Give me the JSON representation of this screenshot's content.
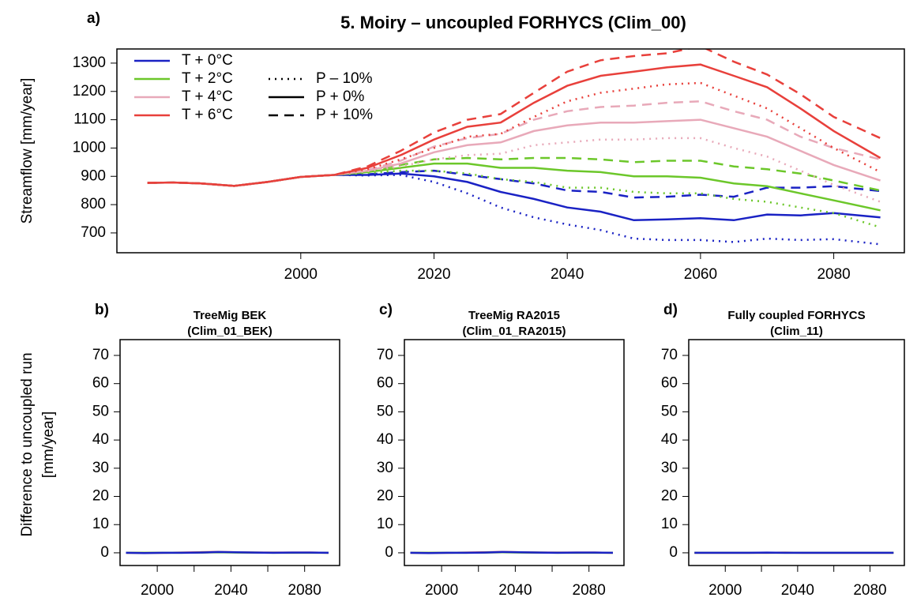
{
  "chart_data": [
    {
      "type": "line",
      "panel_label": "a)",
      "title": "5. Moiry – uncoupled FORHYCS (Clim_00)",
      "ylabel": "Streamflow [mm/year]",
      "x": [
        1977,
        1981,
        1985,
        1990,
        1995,
        2000,
        2005,
        2010,
        2015,
        2020,
        2025,
        2030,
        2035,
        2040,
        2045,
        2050,
        2055,
        2060,
        2065,
        2070,
        2075,
        2080,
        2087
      ],
      "xlim": [
        1972.4,
        2090.6
      ],
      "xticks": [
        2000,
        2020,
        2040,
        2060,
        2080
      ],
      "ylim": [
        630,
        1350
      ],
      "yticks": [
        700,
        800,
        900,
        1000,
        1100,
        1200,
        1300
      ],
      "line_styles": [
        {
          "name": "P – 10%",
          "dash": "dotted"
        },
        {
          "name": "P + 0%",
          "dash": "solid"
        },
        {
          "name": "P + 10%",
          "dash": "dashed"
        }
      ],
      "series": [
        {
          "name": "T + 0°C",
          "color": "#1a22c4",
          "values": [
            [
              877,
              878,
              875,
              866,
              880,
              898,
              905,
              903,
              905,
              880,
              840,
              790,
              755,
              730,
              710,
              680,
              675,
              675,
              668,
              680,
              675,
              678,
              660
            ],
            [
              877,
              878,
              875,
              866,
              880,
              898,
              905,
              905,
              910,
              900,
              880,
              845,
              820,
              790,
              775,
              745,
              748,
              752,
              745,
              765,
              762,
              770,
              755
            ],
            [
              877,
              878,
              875,
              866,
              880,
              898,
              905,
              907,
              915,
              920,
              905,
              890,
              875,
              850,
              845,
              825,
              828,
              835,
              828,
              860,
              860,
              865,
              848
            ]
          ]
        },
        {
          "name": "T + 2°C",
          "color": "#6cc72a",
          "values": [
            [
              877,
              878,
              875,
              866,
              880,
              898,
              905,
              912,
              920,
              920,
              910,
              890,
              880,
              860,
              860,
              845,
              840,
              840,
              820,
              810,
              790,
              770,
              720
            ],
            [
              877,
              878,
              875,
              866,
              880,
              898,
              905,
              915,
              930,
              945,
              945,
              930,
              930,
              920,
              915,
              900,
              900,
              895,
              875,
              865,
              840,
              815,
              780
            ],
            [
              877,
              878,
              875,
              866,
              880,
              898,
              905,
              918,
              940,
              960,
              965,
              960,
              965,
              965,
              960,
              950,
              955,
              955,
              935,
              925,
              910,
              885,
              850
            ]
          ]
        },
        {
          "name": "T + 4°C",
          "color": "#e8a9b9",
          "values": [
            [
              877,
              878,
              875,
              866,
              880,
              898,
              905,
              918,
              935,
              960,
              975,
              980,
              1010,
              1020,
              1030,
              1030,
              1035,
              1035,
              1000,
              970,
              920,
              870,
              810
            ],
            [
              877,
              878,
              875,
              866,
              880,
              898,
              905,
              920,
              945,
              985,
              1010,
              1020,
              1060,
              1080,
              1090,
              1090,
              1095,
              1100,
              1070,
              1040,
              990,
              940,
              885
            ],
            [
              877,
              878,
              875,
              866,
              880,
              898,
              905,
              922,
              955,
              1005,
              1035,
              1050,
              1100,
              1130,
              1145,
              1150,
              1160,
              1165,
              1130,
              1100,
              1040,
              1000,
              960
            ]
          ]
        },
        {
          "name": "T + 6°C",
          "color": "#e8403b",
          "values": [
            [
              877,
              878,
              875,
              866,
              880,
              898,
              905,
              925,
              960,
              1000,
              1040,
              1050,
              1110,
              1165,
              1195,
              1210,
              1225,
              1230,
              1185,
              1140,
              1070,
              1000,
              915
            ],
            [
              877,
              878,
              875,
              866,
              880,
              898,
              905,
              930,
              975,
              1030,
              1075,
              1090,
              1160,
              1220,
              1255,
              1270,
              1285,
              1295,
              1255,
              1215,
              1140,
              1060,
              965
            ],
            [
              877,
              878,
              875,
              866,
              880,
              898,
              905,
              935,
              990,
              1055,
              1100,
              1120,
              1195,
              1270,
              1310,
              1325,
              1335,
              1360,
              1305,
              1260,
              1190,
              1110,
              1035
            ]
          ]
        }
      ]
    },
    {
      "type": "line",
      "panel_label": "b)",
      "title": [
        "TreeMig BEK",
        "(Clim_01_BEK)"
      ],
      "ylabel": [
        "Difference to uncoupled run",
        "[mm/year]"
      ],
      "x": [
        1983,
        1993,
        2003,
        2013,
        2023,
        2033,
        2043,
        2053,
        2063,
        2073,
        2083,
        2093
      ],
      "xlim": [
        1979.8,
        2099
      ],
      "xticks": [
        2000,
        2040,
        2080
      ],
      "xminor_ticks": [
        2020,
        2060
      ],
      "ylim": [
        -4.5,
        75.6
      ],
      "yticks": [
        0,
        10,
        20,
        30,
        40,
        50,
        60,
        70
      ],
      "series": [
        {
          "color": "#e8403b",
          "values": [
            0,
            0,
            0,
            0.1,
            0.2,
            0.3,
            0.2,
            0.1,
            0.1,
            0.1,
            0.1,
            0
          ]
        },
        {
          "color": "#e8a9b9",
          "values": [
            0,
            0,
            0,
            0.1,
            0.1,
            0.2,
            0.2,
            0.1,
            0.1,
            0,
            0.1,
            0
          ]
        },
        {
          "color": "#6cc72a",
          "values": [
            0,
            0,
            0,
            0,
            0.1,
            0.2,
            0.1,
            0.1,
            0,
            0,
            0,
            0
          ]
        },
        {
          "color": "#1a22c4",
          "values": [
            0,
            -0.1,
            0,
            0,
            0.1,
            0.3,
            0.2,
            0.1,
            0,
            0.1,
            0.1,
            0
          ]
        }
      ]
    },
    {
      "type": "line",
      "panel_label": "c)",
      "title": [
        "TreeMig RA2015",
        "(Clim_01_RA2015)"
      ],
      "x": [
        1983,
        1993,
        2003,
        2013,
        2023,
        2033,
        2043,
        2053,
        2063,
        2073,
        2083,
        2093
      ],
      "xlim": [
        1979.8,
        2099
      ],
      "xticks": [
        2000,
        2040,
        2080
      ],
      "xminor_ticks": [
        2020,
        2060
      ],
      "ylim": [
        -4.5,
        75.6
      ],
      "yticks": [
        0,
        10,
        20,
        30,
        40,
        50,
        60,
        70
      ],
      "series": [
        {
          "color": "#e8403b",
          "values": [
            0,
            0,
            0,
            0.1,
            0.2,
            0.3,
            0.2,
            0.1,
            0.1,
            0.1,
            0.1,
            0
          ]
        },
        {
          "color": "#e8a9b9",
          "values": [
            0,
            0,
            0,
            0.1,
            0.1,
            0.2,
            0.2,
            0.1,
            0.1,
            0,
            0.1,
            0
          ]
        },
        {
          "color": "#6cc72a",
          "values": [
            0,
            0,
            0,
            0,
            0.1,
            0.2,
            0.1,
            0.1,
            0,
            0,
            0,
            0
          ]
        },
        {
          "color": "#1a22c4",
          "values": [
            0,
            -0.1,
            0,
            0,
            0.1,
            0.3,
            0.2,
            0.1,
            0,
            0.1,
            0.1,
            0
          ]
        }
      ]
    },
    {
      "type": "line",
      "panel_label": "d)",
      "title": [
        "Fully coupled FORHYCS",
        "(Clim_11)"
      ],
      "x": [
        1983,
        1993,
        2003,
        2013,
        2023,
        2033,
        2043,
        2053,
        2063,
        2073,
        2083,
        2093
      ],
      "xlim": [
        1979.8,
        2099
      ],
      "xticks": [
        2000,
        2040,
        2080
      ],
      "xminor_ticks": [
        2020,
        2060
      ],
      "ylim": [
        -4.5,
        75.6
      ],
      "yticks": [
        0,
        10,
        20,
        30,
        40,
        50,
        60,
        70
      ],
      "series": [
        {
          "color": "#e8403b",
          "values": [
            0,
            0,
            0,
            0,
            0,
            0.1,
            0,
            0,
            0,
            0,
            0,
            0
          ]
        },
        {
          "color": "#e8a9b9",
          "values": [
            0,
            0,
            0,
            0,
            0,
            0,
            0,
            0,
            0,
            0,
            0,
            0
          ]
        },
        {
          "color": "#6cc72a",
          "values": [
            0,
            0,
            0,
            0,
            0,
            0,
            0,
            0,
            0,
            0,
            0,
            0
          ]
        },
        {
          "color": "#1a22c4",
          "values": [
            0,
            0,
            0,
            0,
            0.1,
            0,
            0,
            0,
            0,
            0,
            0,
            0
          ]
        }
      ]
    }
  ]
}
